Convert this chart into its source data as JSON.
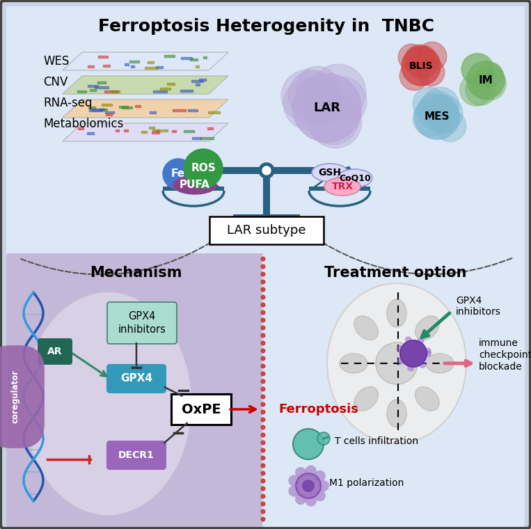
{
  "title": "Ferroptosis Heterogenity in  TNBC",
  "bg_outer": "#c8d2e2",
  "bg_top": "#dce8f5",
  "bg_bottom_left": "#c4b8d8",
  "bg_bottom_right": "#dce8f5",
  "border_color": "#444444",
  "top_labels": [
    "WES",
    "CNV",
    "RNA-seq",
    "Metabolomics"
  ],
  "lar_subtype_label": "LAR subtype",
  "mechanism_title": "Mechanism",
  "treatment_title": "Treatment option",
  "scale_color": "#2a6080",
  "fe_color": "#4477cc",
  "ros_color": "#339944",
  "pufa_color": "#884488",
  "gsh_color": "#d8d8f8",
  "coq10_color": "#d8d8f8",
  "trx_color": "#ffaacc",
  "gpx4inh_color": "#aaddd0",
  "gpx4inh_border": "#448877",
  "gpx4_color": "#3399bb",
  "decr1_color": "#9966bb",
  "ar_color": "#226655",
  "coregulator_color": "#9966aa",
  "lar_color": "#b8a8d8",
  "blis_color": "#cc4444",
  "mes_color": "#80b8d0",
  "im_color": "#70b060",
  "red_divider": "#cc2222",
  "cell_white": "#f0f0f0",
  "tumor_cell_color": "#e8e8e8"
}
